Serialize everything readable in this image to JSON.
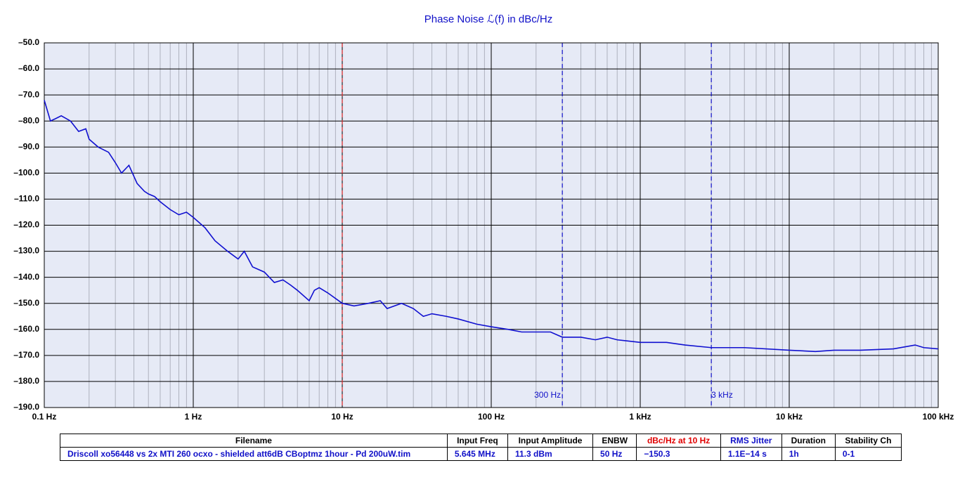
{
  "chart_data": {
    "type": "line",
    "title": "Phase  Noise ℒ(f) in dBc/Hz",
    "xscale": "log",
    "xlim": [
      0.1,
      100000
    ],
    "xticks": [
      {
        "value": 0.1,
        "label": "0.1 Hz"
      },
      {
        "value": 1,
        "label": "1 Hz"
      },
      {
        "value": 10,
        "label": "10 Hz"
      },
      {
        "value": 100,
        "label": "100 Hz"
      },
      {
        "value": 1000,
        "label": "1 kHz"
      },
      {
        "value": 10000,
        "label": "10 kHz"
      },
      {
        "value": 100000,
        "label": "100 kHz"
      }
    ],
    "ylim": [
      -190,
      -50
    ],
    "yticks": [
      {
        "value": -50,
        "label": "–50.0"
      },
      {
        "value": -60,
        "label": "–60.0"
      },
      {
        "value": -70,
        "label": "–70.0"
      },
      {
        "value": -80,
        "label": "–80.0"
      },
      {
        "value": -90,
        "label": "–90.0"
      },
      {
        "value": -100,
        "label": "–100.0"
      },
      {
        "value": -110,
        "label": "–110.0"
      },
      {
        "value": -120,
        "label": "–120.0"
      },
      {
        "value": -130,
        "label": "–130.0"
      },
      {
        "value": -140,
        "label": "–140.0"
      },
      {
        "value": -150,
        "label": "–150.0"
      },
      {
        "value": -160,
        "label": "–160.0"
      },
      {
        "value": -170,
        "label": "–170.0"
      },
      {
        "value": -180,
        "label": "–180.0"
      },
      {
        "value": -190,
        "label": "–190.0"
      }
    ],
    "grid": true,
    "minor_grid": true,
    "markers": [
      {
        "x": 10,
        "color": "#d42020"
      },
      {
        "x": 300,
        "label": "300 Hz",
        "color": "#1010c8"
      },
      {
        "x": 3000,
        "label": "3 kHz",
        "color": "#1010c8"
      }
    ],
    "x": [
      0.1,
      0.11,
      0.12,
      0.13,
      0.15,
      0.17,
      0.19,
      0.2,
      0.23,
      0.27,
      0.3,
      0.33,
      0.37,
      0.42,
      0.47,
      0.5,
      0.55,
      0.6,
      0.7,
      0.8,
      0.9,
      1,
      1.2,
      1.4,
      1.7,
      2,
      2.2,
      2.5,
      3,
      3.5,
      4,
      4.5,
      5,
      6,
      6.5,
      7,
      8,
      10,
      12,
      15,
      18,
      20,
      25,
      30,
      35,
      40,
      50,
      60,
      80,
      100,
      130,
      160,
      200,
      250,
      300,
      400,
      500,
      600,
      700,
      1000,
      1500,
      2000,
      3000,
      5000,
      10000,
      15000,
      20000,
      30000,
      50000,
      70000,
      80000,
      100000
    ],
    "series": [
      {
        "color": "#1010d0",
        "values": [
          -72,
          -80,
          -79,
          -78,
          -80,
          -84,
          -83,
          -87,
          -90,
          -92,
          -96,
          -100,
          -97,
          -104,
          -107,
          -108,
          -109,
          -111,
          -114,
          -116,
          -115,
          -117,
          -121,
          -126,
          -130,
          -133,
          -130,
          -136,
          -138,
          -142,
          -141,
          -143,
          -145,
          -149,
          -145,
          -144,
          -146,
          -150,
          -151,
          -150,
          -149,
          -152,
          -150,
          -152,
          -155,
          -154,
          -155,
          -156,
          -158,
          -159,
          -160,
          -161,
          -161,
          -161,
          -163,
          -163,
          -164,
          -163,
          -164,
          -165,
          -165,
          -166,
          -167,
          -167,
          -168,
          -168.5,
          -168,
          -168,
          -167.5,
          -166,
          -167,
          -167.5
        ]
      }
    ]
  },
  "table": {
    "header": [
      "Filename",
      "Input Freq",
      "Input Amplitude",
      "ENBW",
      "dBc/Hz at 10 Hz",
      "RMS Jitter",
      "Duration",
      "Stability Ch"
    ],
    "header_colors": [
      "#000",
      "#000",
      "#000",
      "#000",
      "#e00000",
      "#1010c8",
      "#000",
      "#000"
    ],
    "rows": [
      [
        "Driscoll xo56448 vs 2x MTI 260 ocxo - shielded att6dB CBoptmz 1hour - Pd 200uW.tim",
        "5.645 MHz",
        "11.3 dBm",
        "50 Hz",
        "−150.3",
        "1.1E−14 s",
        "1h",
        "0-1"
      ]
    ]
  }
}
